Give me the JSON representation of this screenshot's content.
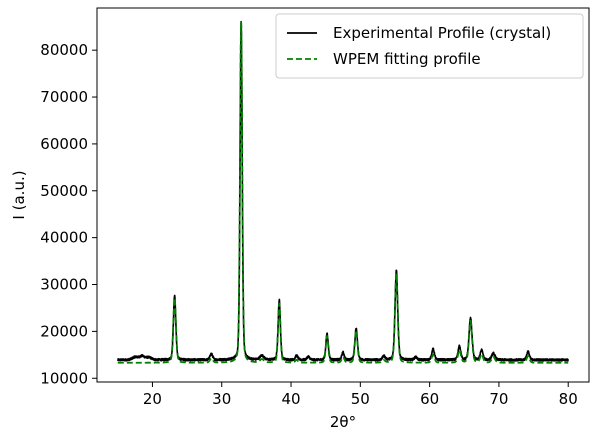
{
  "chart_data": {
    "type": "line",
    "xlabel": "2θ°",
    "ylabel": "I (a.u.)",
    "xlim": [
      12,
      83
    ],
    "ylim": [
      9200,
      89000
    ],
    "xticks": [
      20,
      30,
      40,
      50,
      60,
      70,
      80
    ],
    "yticks": [
      10000,
      20000,
      30000,
      40000,
      50000,
      60000,
      70000,
      80000
    ],
    "legend_position": "top-right",
    "baseline": 13700,
    "series": [
      {
        "name": "Experimental Profile (crystal)",
        "color": "#000000",
        "style": "solid",
        "baseline": 13900,
        "noise": 450,
        "x_start": 15,
        "x_end": 80,
        "peaks": [
          {
            "x": 17.5,
            "h": 600,
            "w": 0.4
          },
          {
            "x": 18.5,
            "h": 800,
            "w": 0.4
          },
          {
            "x": 19.5,
            "h": 500,
            "w": 0.4
          },
          {
            "x": 23.2,
            "h": 13800,
            "w": 0.18
          },
          {
            "x": 28.5,
            "h": 1300,
            "w": 0.2
          },
          {
            "x": 32.8,
            "h": 72300,
            "w": 0.16
          },
          {
            "x": 35.8,
            "h": 900,
            "w": 0.3
          },
          {
            "x": 38.3,
            "h": 12800,
            "w": 0.17
          },
          {
            "x": 40.8,
            "h": 900,
            "w": 0.2
          },
          {
            "x": 42.5,
            "h": 700,
            "w": 0.2
          },
          {
            "x": 45.2,
            "h": 5600,
            "w": 0.18
          },
          {
            "x": 47.5,
            "h": 1600,
            "w": 0.18
          },
          {
            "x": 49.4,
            "h": 6800,
            "w": 0.19
          },
          {
            "x": 53.4,
            "h": 800,
            "w": 0.2
          },
          {
            "x": 55.2,
            "h": 19200,
            "w": 0.2
          },
          {
            "x": 58.0,
            "h": 600,
            "w": 0.2
          },
          {
            "x": 60.5,
            "h": 2300,
            "w": 0.2
          },
          {
            "x": 64.3,
            "h": 2900,
            "w": 0.2
          },
          {
            "x": 65.9,
            "h": 9000,
            "w": 0.22
          },
          {
            "x": 67.5,
            "h": 2100,
            "w": 0.2
          },
          {
            "x": 69.2,
            "h": 1400,
            "w": 0.25
          },
          {
            "x": 74.2,
            "h": 1800,
            "w": 0.2
          }
        ]
      },
      {
        "name": "WPEM fitting profile",
        "color": "#008000",
        "style": "dashed",
        "baseline": 13300,
        "noise": 0,
        "x_start": 15,
        "x_end": 80,
        "peaks": [
          {
            "x": 23.2,
            "h": 13800,
            "w": 0.2
          },
          {
            "x": 28.5,
            "h": 900,
            "w": 0.22
          },
          {
            "x": 32.8,
            "h": 72600,
            "w": 0.17
          },
          {
            "x": 35.8,
            "h": 700,
            "w": 0.3
          },
          {
            "x": 38.3,
            "h": 12600,
            "w": 0.18
          },
          {
            "x": 40.8,
            "h": 600,
            "w": 0.2
          },
          {
            "x": 45.2,
            "h": 5700,
            "w": 0.19
          },
          {
            "x": 47.5,
            "h": 1200,
            "w": 0.2
          },
          {
            "x": 49.4,
            "h": 6900,
            "w": 0.2
          },
          {
            "x": 53.4,
            "h": 500,
            "w": 0.2
          },
          {
            "x": 55.2,
            "h": 19000,
            "w": 0.21
          },
          {
            "x": 60.5,
            "h": 1700,
            "w": 0.22
          },
          {
            "x": 64.3,
            "h": 2700,
            "w": 0.22
          },
          {
            "x": 65.9,
            "h": 8900,
            "w": 0.23
          },
          {
            "x": 67.5,
            "h": 1800,
            "w": 0.22
          },
          {
            "x": 69.2,
            "h": 1200,
            "w": 0.26
          },
          {
            "x": 74.2,
            "h": 1400,
            "w": 0.22
          }
        ]
      }
    ]
  }
}
